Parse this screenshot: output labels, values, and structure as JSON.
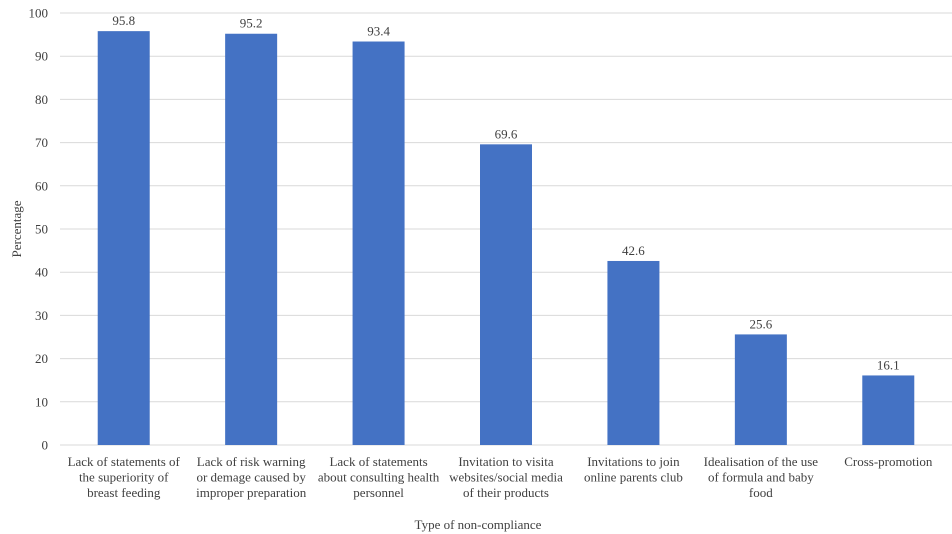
{
  "chart_data": {
    "type": "bar",
    "title": "",
    "xlabel": "Type of non-compliance",
    "ylabel": "Percentage",
    "ylim": [
      0,
      100
    ],
    "yticks": [
      0,
      10,
      20,
      30,
      40,
      50,
      60,
      70,
      80,
      90,
      100
    ],
    "grid": true,
    "bar_color": "#4472c4",
    "categories": [
      [
        "Lack of statements of",
        "the superiority of",
        "breast feeding"
      ],
      [
        "Lack of risk warning",
        "or demage caused by",
        "improper preparation"
      ],
      [
        "Lack of statements",
        "about consulting health",
        "personnel"
      ],
      [
        "Invitation to visita",
        "websites/social media",
        "of their products"
      ],
      [
        "Invitations to join",
        "online parents club"
      ],
      [
        "Idealisation of the use",
        "of formula and baby",
        "food"
      ],
      [
        "Cross-promotion"
      ]
    ],
    "values": [
      95.8,
      95.2,
      93.4,
      69.6,
      42.6,
      25.6,
      16.1
    ]
  }
}
